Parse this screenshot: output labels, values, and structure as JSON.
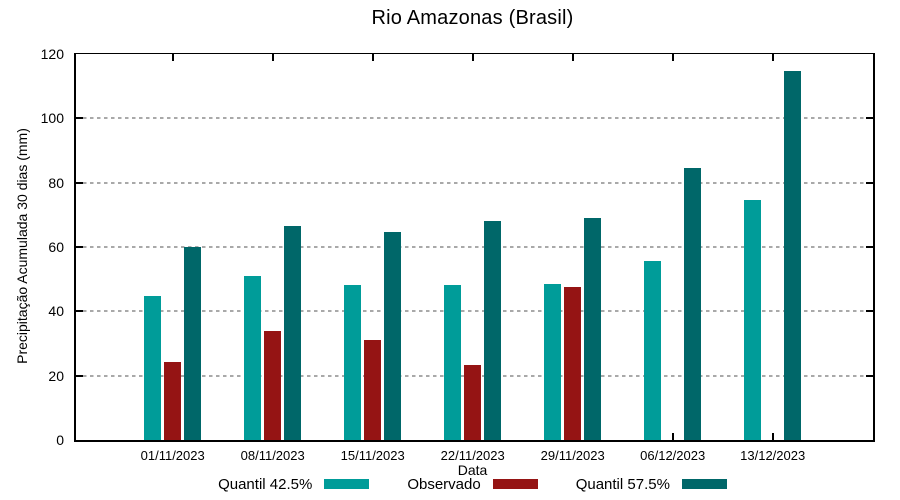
{
  "title": "Rio Amazonas (Brasil)",
  "chart_data": {
    "type": "bar",
    "title": "Rio Amazonas (Brasil)",
    "xlabel": "Data",
    "ylabel": "Precipitação Acumulada 30 dias (mm)",
    "categories": [
      "01/11/2023",
      "08/11/2023",
      "15/11/2023",
      "22/11/2023",
      "29/11/2023",
      "06/12/2023",
      "13/12/2023"
    ],
    "series": [
      {
        "name": "Quantil 42.5%",
        "color": "#009c99",
        "values": [
          44.8,
          51.0,
          48.3,
          48.3,
          48.5,
          55.5,
          74.7
        ]
      },
      {
        "name": "Observado",
        "color": "#951414",
        "values": [
          24.2,
          34.0,
          31.2,
          23.2,
          47.6,
          null,
          null
        ]
      },
      {
        "name": "Quantil 57.5%",
        "color": "#006769",
        "values": [
          60.0,
          66.5,
          64.8,
          68.0,
          69.0,
          84.6,
          114.7
        ]
      }
    ],
    "ylim": [
      0,
      120
    ],
    "ytick_step": 20,
    "grid": "horizontal dashed gray lines at y ticks",
    "grid_color": "#a9a9a9",
    "legend_position": "bottom center",
    "background_color": "#ffffff"
  }
}
